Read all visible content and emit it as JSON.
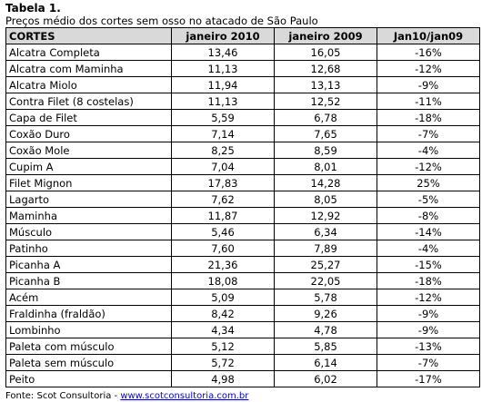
{
  "title": "Tabela 1.",
  "subtitle": "Preços médio dos cortes sem osso no atacado de São Paulo",
  "table": {
    "headers": [
      "CORTES",
      "janeiro 2010",
      "janeiro 2009",
      "Jan10/jan09"
    ],
    "rows": [
      [
        "Alcatra Completa",
        "13,46",
        "16,05",
        "-16%"
      ],
      [
        "Alcatra com Maminha",
        "11,13",
        "12,68",
        "-12%"
      ],
      [
        "Alcatra Miolo",
        "11,94",
        "13,13",
        "-9%"
      ],
      [
        "Contra Filet (8 costelas)",
        "11,13",
        "12,52",
        "-11%"
      ],
      [
        "Capa de Filet",
        "5,59",
        "6,78",
        "-18%"
      ],
      [
        "Coxão Duro",
        "7,14",
        "7,65",
        "-7%"
      ],
      [
        "Coxão Mole",
        "8,25",
        "8,59",
        "-4%"
      ],
      [
        "Cupim A",
        "7,04",
        "8,01",
        "-12%"
      ],
      [
        "Filet Mignon",
        "17,83",
        "14,28",
        "25%"
      ],
      [
        "Lagarto",
        "7,62",
        "8,05",
        "-5%"
      ],
      [
        "Maminha",
        "11,87",
        "12,92",
        "-8%"
      ],
      [
        "Músculo",
        "5,46",
        "6,34",
        "-14%"
      ],
      [
        "Patinho",
        "7,60",
        "7,89",
        "-4%"
      ],
      [
        "Picanha A",
        "21,36",
        "25,27",
        "-15%"
      ],
      [
        "Picanha B",
        "18,08",
        "22,05",
        "-18%"
      ],
      [
        "Acém",
        "5,09",
        "5,78",
        "-12%"
      ],
      [
        "Fraldinha (fraldão)",
        "8,42",
        "9,26",
        "-9%"
      ],
      [
        "Lombinho",
        "4,34",
        "4,78",
        "-9%"
      ],
      [
        "Paleta com músculo",
        "5,12",
        "5,85",
        "-13%"
      ],
      [
        "Paleta sem músculo",
        "5,72",
        "6,14",
        "-7%"
      ],
      [
        "Peito",
        "4,98",
        "6,02",
        "-17%"
      ]
    ]
  },
  "source": {
    "prefix": "Fonte: Scot Consultoria - ",
    "link": "www.scotconsultoria.com.br"
  }
}
